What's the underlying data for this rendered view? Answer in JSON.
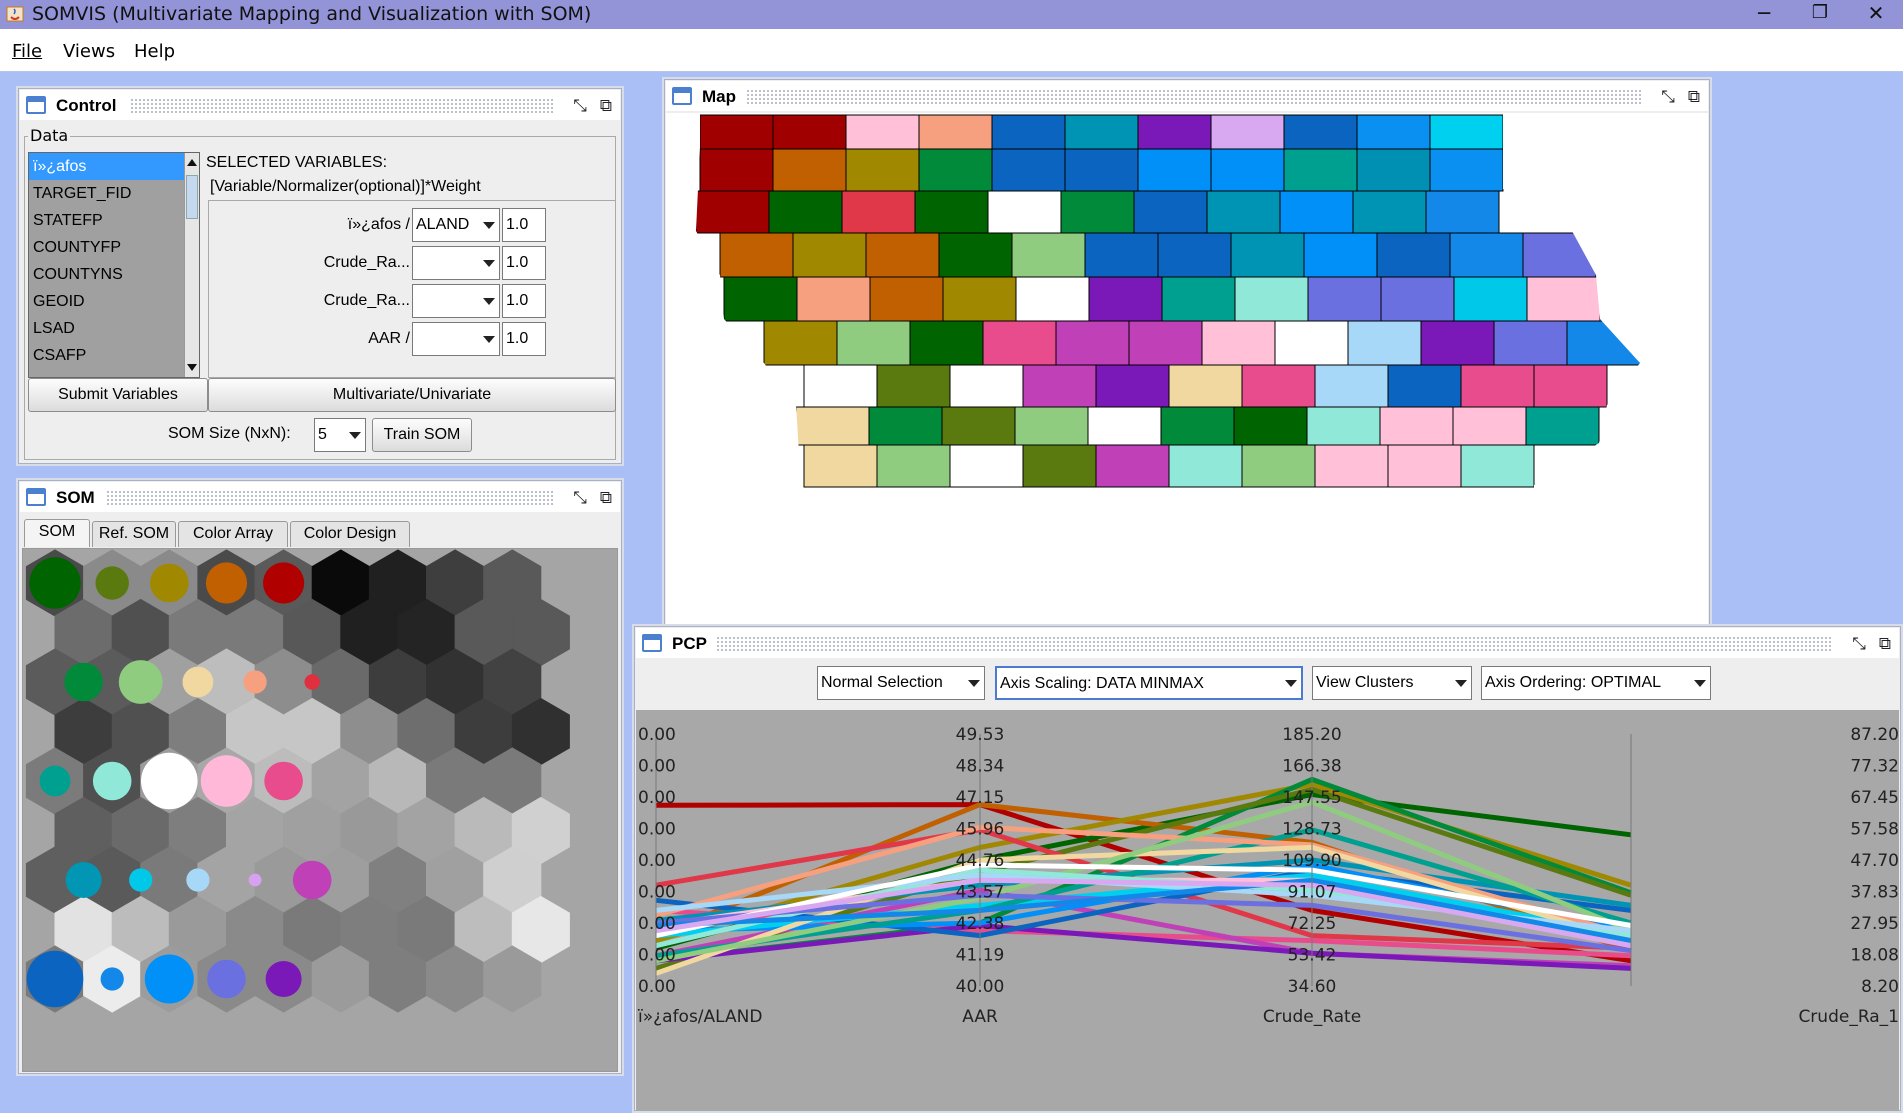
{
  "window": {
    "title": "SOMVIS (Multivariate Mapping and Visualization with SOM)",
    "controls": [
      "─",
      "❐",
      "✕"
    ]
  },
  "menu": {
    "items": [
      "File",
      "Views",
      "Help"
    ]
  },
  "control_panel": {
    "title": "Control",
    "data_group_label": "Data",
    "variables": [
      "ï»¿afos",
      "TARGET_FID",
      "STATEFP",
      "COUNTYFP",
      "COUNTYNS",
      "GEOID",
      "LSAD",
      "CSAFP"
    ],
    "selected_variable_index": 0,
    "selected_header_line1": "SELECTED VARIABLES:",
    "selected_header_line2": "[Variable/Normalizer(optional)]*Weight",
    "rows": [
      {
        "label": "ï»¿afos /",
        "normalizer": "ALAND",
        "weight": "1.0"
      },
      {
        "label": "Crude_Ra...",
        "normalizer": "",
        "weight": "1.0"
      },
      {
        "label": "Crude_Ra...",
        "normalizer": "",
        "weight": "1.0"
      },
      {
        "label": "AAR /",
        "normalizer": "",
        "weight": "1.0"
      }
    ],
    "submit_button": "Submit Variables",
    "multi_button": "Multivariate/Univariate",
    "som_size_label": "SOM Size (NxN):",
    "som_size_value": "5",
    "train_button": "Train SOM"
  },
  "som_panel": {
    "title": "SOM",
    "tabs": [
      "SOM",
      "Ref. SOM",
      "Color Array",
      "Color Design"
    ],
    "active_tab": 0,
    "hex_shades": [
      [
        "#4a4a4a",
        "#8a8a8a",
        "#8a8a8a",
        "#4a4a4a",
        "#5a5a5a",
        "#0a0a0a",
        "#202020",
        "#3e3e3e",
        "#595959"
      ],
      [
        "#6c6c6c",
        "#505050",
        "#7a7a7a",
        "#7a7a7a",
        "#585858",
        "#202020",
        "#242424",
        "#595959",
        "#595959"
      ],
      [
        "#5b5b5b",
        "#5b5b5b",
        "#a0a0a0",
        "#bdbdbd",
        "#8d8d8d",
        "#6a6a6a",
        "#3d3d3d",
        "#323232",
        "#424242"
      ],
      [
        "#3d3d3d",
        "#505050",
        "#7e7e7e",
        "#c6c6c6",
        "#c6c6c6",
        "#8e8e8e",
        "#6e6e6e",
        "#3d3d3d",
        "#303030"
      ],
      [
        "#7b7b7b",
        "#505050",
        "#9c9c9c",
        "#a8a8a8",
        "#bcbcbc",
        "#a3a3a3",
        "#b8b8b8",
        "#7a7a7a",
        "#7a7a7a"
      ],
      [
        "#5f5f5f",
        "#6a6a6a",
        "#7e7e7e",
        "#a4a4a4",
        "#a0a0a0",
        "#999999",
        "#a3a3a3",
        "#bababa",
        "#d0d0d0"
      ],
      [
        "#5f5f5f",
        "#5a5a5a",
        "#7a7a7a",
        "#a4a4a4",
        "#9a9a9a",
        "#9e9e9e",
        "#808080",
        "#a0a0a0",
        "#cfcfcf"
      ],
      [
        "#e2e2e2",
        "#bcbcbc",
        "#9a9a9a",
        "#8a8a8a",
        "#7a7a7a",
        "#7e7e7e",
        "#7a7a7a",
        "#bdbdbd",
        "#e7e7e7"
      ],
      [
        "#7a7a7a",
        "#ececec",
        "#9c9c9c",
        "#8a8a8a",
        "#8a8a8a",
        "#9b9b9b",
        "#7e7e7e",
        "#8a8a8a",
        "#9a9a9a"
      ]
    ],
    "dots": [
      {
        "r": 0,
        "c": 0,
        "color": "#006400",
        "size": 1.0
      },
      {
        "r": 0,
        "c": 2,
        "color": "#5a7a10",
        "size": 0.65
      },
      {
        "r": 0,
        "c": 4,
        "color": "#a08800",
        "size": 0.75
      },
      {
        "r": 0,
        "c": 6,
        "color": "#c06000",
        "size": 0.8
      },
      {
        "r": 0,
        "c": 8,
        "color": "#b00000",
        "size": 0.8
      },
      {
        "r": 2,
        "c": 1,
        "color": "#008a3a",
        "size": 0.75
      },
      {
        "r": 2,
        "c": 3,
        "color": "#90cc80",
        "size": 0.85
      },
      {
        "r": 2,
        "c": 5,
        "color": "#f0d8a0",
        "size": 0.6
      },
      {
        "r": 2,
        "c": 7,
        "color": "#f7a080",
        "size": 0.45
      },
      {
        "r": 2,
        "c": 9,
        "color": "#e03040",
        "size": 0.3
      },
      {
        "r": 4,
        "c": 0,
        "color": "#00a090",
        "size": 0.6
      },
      {
        "r": 4,
        "c": 2,
        "color": "#90e8d8",
        "size": 0.75
      },
      {
        "r": 4,
        "c": 4,
        "color": "#ffffff",
        "size": 1.1
      },
      {
        "r": 4,
        "c": 6,
        "color": "#ffb8d8",
        "size": 1.0
      },
      {
        "r": 4,
        "c": 8,
        "color": "#e84c8c",
        "size": 0.75
      },
      {
        "r": 6,
        "c": 1,
        "color": "#0096b4",
        "size": 0.7
      },
      {
        "r": 6,
        "c": 3,
        "color": "#00c8e8",
        "size": 0.45
      },
      {
        "r": 6,
        "c": 5,
        "color": "#a8d8f8",
        "size": 0.45
      },
      {
        "r": 6,
        "c": 7,
        "color": "#d8a0f0",
        "size": 0.25
      },
      {
        "r": 6,
        "c": 9,
        "color": "#c040b8",
        "size": 0.75
      },
      {
        "r": 8,
        "c": 0,
        "color": "#0a64c0",
        "size": 1.1
      },
      {
        "r": 8,
        "c": 2,
        "color": "#1488e8",
        "size": 0.45
      },
      {
        "r": 8,
        "c": 4,
        "color": "#0090f8",
        "size": 0.95
      },
      {
        "r": 8,
        "c": 6,
        "color": "#6a70e0",
        "size": 0.75
      },
      {
        "r": 8,
        "c": 8,
        "color": "#7a18b8",
        "size": 0.7
      }
    ]
  },
  "map_panel": {
    "title": "Map",
    "counties": [
      [
        "#a00000",
        "#a00000",
        "#ffc0d8",
        "#f7a080",
        "#0b64c0",
        "#0094b4",
        "#7a18b8",
        "#d8a8f0",
        "#0b64c0",
        "#0a90f0",
        "#00d0f0"
      ],
      [
        "#a00000",
        "#c06000",
        "#a08800",
        "#008a3a",
        "#0b64c0",
        "#0b64c0",
        "#0090f8",
        "#0090f8",
        "#00a090",
        "#0090b4",
        "#0a90f0"
      ],
      [
        "#a00000",
        "#006400",
        "#e03848",
        "#006400",
        "#ffffff",
        "#008a3a",
        "#0b64c0",
        "#0094b4",
        "#0090f8",
        "#0094b4",
        "#1488e8"
      ],
      [
        "#c06000",
        "#a08800",
        "#c06000",
        "#006400",
        "#90cc80",
        "#0b64c0",
        "#0b64c0",
        "#0094b4",
        "#0090f8",
        "#0b64c0",
        "#1488e8",
        "#6a70e0"
      ],
      [
        "#006400",
        "#f7a080",
        "#c06000",
        "#a08800",
        "#ffffff",
        "#7a18b8",
        "#00a090",
        "#90e8d8",
        "#6a70e0",
        "#6a70e0",
        "#00c8e8",
        "#ffc0d8"
      ],
      [
        "#a08800",
        "#90cc80",
        "#006400",
        "#e84c8c",
        "#c040b8",
        "#c040b8",
        "#ffc0d8",
        "#ffffff",
        "#a8d8f8",
        "#7a18b8",
        "#6a70e0",
        "#1488e8"
      ],
      [
        "#ffffff",
        "#5a7a10",
        "#ffffff",
        "#c040b8",
        "#7a18b8",
        "#f0d8a0",
        "#e84c8c",
        "#a8d8f8",
        "#0b64c0",
        "#e84c8c",
        "#e84c8c"
      ],
      [
        "#f0d8a0",
        "#008a3a",
        "#5a7a10",
        "#90cc80",
        "#ffffff",
        "#008a3a",
        "#006400",
        "#90e8d8",
        "#ffc0d8",
        "#ffc0d8",
        "#00a090"
      ],
      [
        "#f0d8a0",
        "#90cc80",
        "#ffffff",
        "#5a7a10",
        "#c040b8",
        "#90e8d8",
        "#90cc80",
        "#ffc0d8",
        "#ffc0d8",
        "#90e8d8"
      ]
    ]
  },
  "pcp_panel": {
    "title": "PCP",
    "toolbar": {
      "selection_mode": "Normal Selection",
      "axis_scaling": "Axis Scaling: DATA MINMAX",
      "view_clusters": "View Clusters",
      "axis_ordering": "Axis Ordering: OPTIMAL"
    },
    "axes": [
      {
        "name": "ï»¿afos/ALAND",
        "ticks": [
          "0.00",
          "0.00",
          "0.00",
          "0.00",
          "0.00",
          "0.00",
          "0.00",
          "0.00",
          "0.00"
        ]
      },
      {
        "name": "AAR",
        "ticks": [
          "49.53",
          "48.34",
          "47.15",
          "45.96",
          "44.76",
          "43.57",
          "42.38",
          "41.19",
          "40.00"
        ]
      },
      {
        "name": "Crude_Rate",
        "ticks": [
          "185.20",
          "166.38",
          "147.55",
          "128.73",
          "109.90",
          "91.07",
          "72.25",
          "53.42",
          "34.60"
        ]
      },
      {
        "name": "Crude_Ra_1",
        "ticks": [
          "87.20",
          "77.32",
          "67.45",
          "57.58",
          "47.70",
          "37.83",
          "27.95",
          "18.08",
          "8.20"
        ]
      }
    ],
    "lines": [
      {
        "color": "#b00000",
        "values": [
          0.717,
          0.72,
          0.3,
          0.1
        ]
      },
      {
        "color": "#006400",
        "values": [
          0.15,
          0.5,
          0.76,
          0.6
        ]
      },
      {
        "color": "#c06000",
        "values": [
          0.2,
          0.72,
          0.57,
          0.14
        ]
      },
      {
        "color": "#a08800",
        "values": [
          0.18,
          0.55,
          0.8,
          0.4
        ]
      },
      {
        "color": "#008a3a",
        "values": [
          0.1,
          0.25,
          0.82,
          0.37
        ]
      },
      {
        "color": "#5a7a10",
        "values": [
          0.07,
          0.45,
          0.78,
          0.36
        ]
      },
      {
        "color": "#e03848",
        "values": [
          0.4,
          0.62,
          0.2,
          0.15
        ]
      },
      {
        "color": "#e84c8c",
        "values": [
          0.3,
          0.22,
          0.18,
          0.12
        ]
      },
      {
        "color": "#c040b8",
        "values": [
          0.12,
          0.38,
          0.13,
          0.08
        ]
      },
      {
        "color": "#7a18b8",
        "values": [
          0.1,
          0.24,
          0.13,
          0.07
        ]
      },
      {
        "color": "#0b64c0",
        "values": [
          0.34,
          0.2,
          0.46,
          0.3
        ]
      },
      {
        "color": "#0094b4",
        "values": [
          0.26,
          0.4,
          0.5,
          0.32
        ]
      },
      {
        "color": "#0090f8",
        "values": [
          0.22,
          0.25,
          0.48,
          0.22
        ]
      },
      {
        "color": "#00d0f0",
        "values": [
          0.2,
          0.32,
          0.44,
          0.2
        ]
      },
      {
        "color": "#00a090",
        "values": [
          0.12,
          0.3,
          0.62,
          0.25
        ]
      },
      {
        "color": "#f7a080",
        "values": [
          0.28,
          0.63,
          0.56,
          0.2
        ]
      },
      {
        "color": "#ffc0d8",
        "values": [
          0.24,
          0.42,
          0.42,
          0.16
        ]
      },
      {
        "color": "#f0d8a0",
        "values": [
          0.05,
          0.5,
          0.55,
          0.18
        ]
      },
      {
        "color": "#90cc80",
        "values": [
          0.1,
          0.35,
          0.73,
          0.22
        ]
      },
      {
        "color": "#90e8d8",
        "values": [
          0.16,
          0.46,
          0.38,
          0.2
        ]
      },
      {
        "color": "#6a70e0",
        "values": [
          0.25,
          0.36,
          0.32,
          0.14
        ]
      },
      {
        "color": "#a8d8f8",
        "values": [
          0.3,
          0.44,
          0.36,
          0.22
        ]
      },
      {
        "color": "#ffffff",
        "values": [
          0.2,
          0.48,
          0.46,
          0.24
        ]
      },
      {
        "color": "#1488e8",
        "values": [
          0.24,
          0.3,
          0.42,
          0.18
        ]
      },
      {
        "color": "#d8a8f0",
        "values": [
          0.22,
          0.42,
          0.4,
          0.16
        ]
      }
    ]
  }
}
